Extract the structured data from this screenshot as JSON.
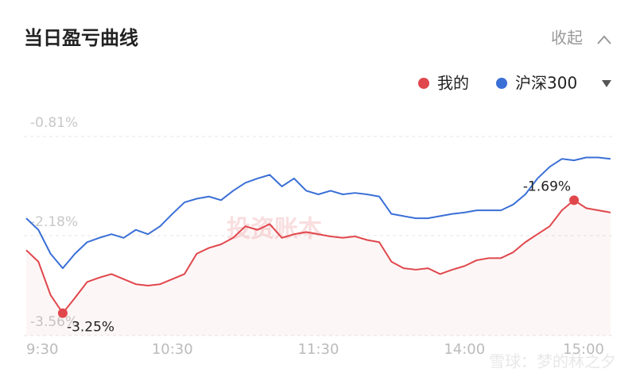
{
  "header": {
    "title": "当日盈亏曲线",
    "collapse": "收起"
  },
  "chart_data": {
    "type": "line",
    "x": [
      0,
      5,
      10,
      15,
      20,
      25,
      30,
      35,
      40,
      45,
      50,
      55,
      60,
      65,
      70,
      75,
      80,
      85,
      90,
      95,
      100,
      105,
      110,
      115,
      120,
      125,
      130,
      135,
      140,
      145,
      150,
      155,
      160,
      165,
      170,
      175,
      180,
      185,
      190,
      195,
      200,
      205,
      210,
      215,
      220,
      225,
      230,
      235,
      240
    ],
    "xlim": [
      0,
      240
    ],
    "xticks": [
      {
        "value": 0,
        "label": "9:30"
      },
      {
        "value": 60,
        "label": "10:30"
      },
      {
        "value": 120,
        "label": "11:30"
      },
      {
        "value": 180,
        "label": "14:00"
      },
      {
        "value": 240,
        "label": "15:00"
      }
    ],
    "ylim": [
      -3.56,
      -0.81
    ],
    "yticks": [
      {
        "value": -0.81,
        "label": "-0.81%"
      },
      {
        "value": -2.18,
        "label": "-2.18%"
      },
      {
        "value": -3.56,
        "label": "-3.56%"
      }
    ],
    "grid": true,
    "series": [
      {
        "name": "我的",
        "color": "#e0474c",
        "area": true,
        "values": [
          -2.38,
          -2.54,
          -3.0,
          -3.25,
          -3.04,
          -2.82,
          -2.76,
          -2.71,
          -2.78,
          -2.85,
          -2.87,
          -2.85,
          -2.78,
          -2.71,
          -2.43,
          -2.35,
          -2.3,
          -2.21,
          -2.05,
          -2.1,
          -2.02,
          -2.21,
          -2.16,
          -2.13,
          -2.16,
          -2.19,
          -2.21,
          -2.19,
          -2.24,
          -2.27,
          -2.54,
          -2.63,
          -2.65,
          -2.63,
          -2.71,
          -2.65,
          -2.6,
          -2.52,
          -2.49,
          -2.49,
          -2.41,
          -2.27,
          -2.16,
          -2.05,
          -1.83,
          -1.69,
          -1.8,
          -1.83,
          -1.86
        ]
      },
      {
        "name": "沪深300",
        "color": "#3a6fd6",
        "area": false,
        "values": [
          -1.94,
          -2.1,
          -2.43,
          -2.63,
          -2.43,
          -2.27,
          -2.21,
          -2.16,
          -2.21,
          -2.1,
          -2.16,
          -2.05,
          -1.88,
          -1.72,
          -1.67,
          -1.64,
          -1.69,
          -1.56,
          -1.45,
          -1.39,
          -1.34,
          -1.5,
          -1.39,
          -1.56,
          -1.61,
          -1.56,
          -1.61,
          -1.59,
          -1.61,
          -1.64,
          -1.88,
          -1.91,
          -1.94,
          -1.94,
          -1.91,
          -1.88,
          -1.86,
          -1.83,
          -1.83,
          -1.83,
          -1.75,
          -1.61,
          -1.39,
          -1.23,
          -1.12,
          -1.14,
          -1.1,
          -1.1,
          -1.12
        ]
      }
    ],
    "annotations": [
      {
        "text": "-3.25%",
        "x": 15,
        "y": -3.25
      },
      {
        "text": "-1.69%",
        "x": 225,
        "y": -1.69
      }
    ]
  },
  "watermarks": [
    "投资账本",
    "雪球：梦的林之夕"
  ]
}
